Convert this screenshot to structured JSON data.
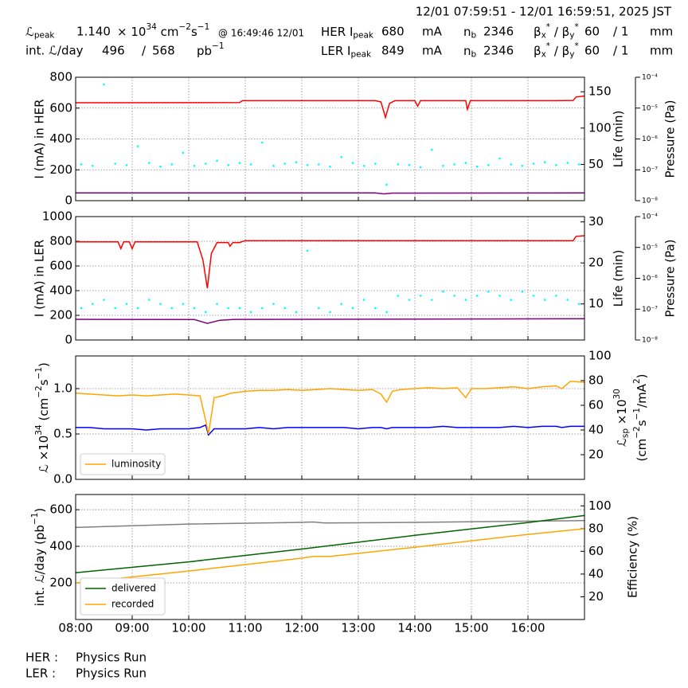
{
  "header": {
    "date_range": "12/01 07:59:51 - 12/01 16:59:51, 2025 JST",
    "lumi": {
      "peak_label": [
        "ℒ",
        {
          "sub": "peak"
        }
      ],
      "peak_value": "1.140",
      "peak_unit": [
        "× 10",
        {
          "sup": "34"
        },
        " cm",
        {
          "sup": "−2"
        },
        "s",
        {
          "sup": "−1"
        }
      ],
      "peak_time": "@ 16:49:46 12/01",
      "int_label": "int. ℒ/day",
      "int_recorded": "496",
      "int_sep": "/",
      "int_delivered": "568",
      "int_unit": [
        "pb",
        {
          "sup": "−1"
        }
      ]
    },
    "rings": [
      {
        "label": [
          "HER I",
          {
            "sub": "peak"
          }
        ],
        "current": "680",
        "current_unit": "mA",
        "nb_label": [
          "n",
          {
            "sub": "b"
          }
        ],
        "nb": "2346",
        "beta_label": [
          "β",
          {
            "sub": "x"
          },
          {
            "sup": "*"
          },
          " / β",
          {
            "sub": "y"
          },
          {
            "sup": "*"
          }
        ],
        "beta_x": "60",
        "beta_y": "/ 1",
        "beta_unit": "mm"
      },
      {
        "label": [
          "LER I",
          {
            "sub": "peak"
          }
        ],
        "current": "849",
        "current_unit": "mA",
        "nb_label": [
          "n",
          {
            "sub": "b"
          }
        ],
        "nb": "2346",
        "beta_label": [
          "β",
          {
            "sub": "x"
          },
          {
            "sup": "*"
          },
          " / β",
          {
            "sub": "y"
          },
          {
            "sup": "*"
          }
        ],
        "beta_x": "60",
        "beta_y": "/ 1",
        "beta_unit": "mm"
      }
    ]
  },
  "footer": [
    {
      "ring": "HER :",
      "mode": "Physics Run"
    },
    {
      "ring": "LER :",
      "mode": "Physics Run"
    }
  ],
  "chart_data": [
    {
      "type": "line",
      "grid": true,
      "ylabel": "I (mA) in HER",
      "y2label": "Life (min)",
      "y3label": "Pressure (Pa)",
      "ylim": [
        0,
        800
      ],
      "yticks": [
        0,
        200,
        400,
        600,
        800
      ],
      "y2lim": [
        0,
        170
      ],
      "y2ticks": [
        50,
        100,
        150
      ],
      "y3log": true,
      "y3lim": [
        1e-08,
        0.0001
      ],
      "y3ticks": [
        {
          "value": 1e-08,
          "label": "10⁻⁸"
        },
        {
          "value": 1e-07,
          "label": "10⁻⁷"
        },
        {
          "value": 1e-06,
          "label": "10⁻⁶"
        },
        {
          "value": 1e-05,
          "label": "10⁻⁵"
        },
        {
          "value": 0.0001,
          "label": "10⁻⁴"
        }
      ],
      "series": [
        {
          "type": "scatter",
          "axis": "y2",
          "color": "#00ffff",
          "x": [
            8.1,
            8.3,
            8.5,
            8.7,
            8.9,
            9.1,
            9.3,
            9.5,
            9.7,
            9.9,
            10.1,
            10.3,
            10.5,
            10.7,
            10.9,
            11.1,
            11.3,
            11.5,
            11.7,
            11.9,
            12.1,
            12.3,
            12.5,
            12.7,
            12.9,
            13.1,
            13.3,
            13.5,
            13.7,
            13.9,
            14.1,
            14.3,
            14.5,
            14.7,
            14.9,
            15.1,
            15.3,
            15.5,
            15.7,
            15.9,
            16.1,
            16.3,
            16.5,
            16.7,
            16.9
          ],
          "values": [
            50,
            48,
            160,
            51,
            49,
            75,
            52,
            47,
            50,
            66,
            48,
            51,
            55,
            49,
            52,
            50,
            80,
            48,
            51,
            53,
            49,
            50,
            47,
            60,
            52,
            48,
            51,
            22,
            50,
            49,
            46,
            70,
            48,
            50,
            52,
            47,
            49,
            58,
            50,
            48,
            51,
            53,
            49,
            52,
            50
          ]
        },
        {
          "color": "#ff0000",
          "x": [
            8,
            10.9,
            10.95,
            12,
            13.3,
            13.4,
            13.48,
            13.55,
            13.65,
            14,
            14.05,
            14.1,
            14.9,
            14.93,
            14.98,
            16.5,
            16.8,
            16.85,
            17
          ],
          "values": [
            635,
            636,
            648,
            648,
            648,
            640,
            540,
            630,
            648,
            648,
            612,
            648,
            648,
            592,
            648,
            648,
            650,
            672,
            678
          ]
        },
        {
          "color": "#800080",
          "x": [
            8,
            13.3,
            13.45,
            13.6,
            17
          ],
          "values": [
            50,
            50,
            44,
            49,
            50
          ]
        }
      ]
    },
    {
      "type": "line",
      "grid": true,
      "ylabel": "I (mA) in LER",
      "y2label": "Life (min)",
      "y3label": "Pressure (Pa)",
      "ylim": [
        0,
        1000
      ],
      "yticks": [
        0,
        200,
        400,
        600,
        800,
        1000
      ],
      "y2lim": [
        1.2,
        31.3
      ],
      "y2ticks": [
        10,
        20,
        30
      ],
      "y3log": true,
      "y3lim": [
        1e-08,
        0.0001
      ],
      "y3ticks": [
        {
          "value": 1e-08,
          "label": "10⁻⁸"
        },
        {
          "value": 1e-07,
          "label": "10⁻⁷"
        },
        {
          "value": 1e-06,
          "label": "10⁻⁶"
        },
        {
          "value": 1e-05,
          "label": "10⁻⁵"
        },
        {
          "value": 0.0001,
          "label": "10⁻⁴"
        }
      ],
      "series": [
        {
          "type": "scatter",
          "axis": "y2",
          "color": "#00ffff",
          "x": [
            8.1,
            8.3,
            8.5,
            8.7,
            8.9,
            9.1,
            9.3,
            9.5,
            9.7,
            9.9,
            10.1,
            10.3,
            10.5,
            10.7,
            10.9,
            11.1,
            11.3,
            11.5,
            11.7,
            11.9,
            12.1,
            12.3,
            12.5,
            12.7,
            12.9,
            13.1,
            13.3,
            13.5,
            13.7,
            13.9,
            14.1,
            14.3,
            14.5,
            14.7,
            14.9,
            15.1,
            15.3,
            15.5,
            15.7,
            15.9,
            16.1,
            16.3,
            16.5,
            16.7,
            16.9
          ],
          "values": [
            9,
            10,
            11,
            9,
            10,
            9,
            11,
            10,
            9,
            10,
            9,
            8,
            10,
            9,
            9,
            8,
            9,
            10,
            9,
            8,
            23,
            9,
            8,
            10,
            9,
            11,
            9,
            8,
            12,
            11,
            12,
            11,
            13,
            12,
            11,
            12,
            13,
            12,
            11,
            13,
            12,
            11,
            12,
            11,
            10
          ]
        },
        {
          "color": "#ff0000",
          "x": [
            8,
            8.75,
            8.8,
            8.85,
            8.95,
            9.0,
            9.05,
            10.15,
            10.25,
            10.33,
            10.4,
            10.5,
            10.7,
            10.73,
            10.78,
            10.9,
            11,
            16.5,
            16.8,
            16.85,
            17
          ],
          "values": [
            795,
            795,
            740,
            795,
            795,
            740,
            795,
            795,
            650,
            420,
            700,
            790,
            790,
            760,
            790,
            790,
            805,
            805,
            805,
            840,
            845
          ]
        },
        {
          "color": "#800080",
          "x": [
            8,
            10.1,
            10.33,
            10.55,
            10.8,
            17
          ],
          "values": [
            168,
            166,
            135,
            160,
            167,
            172
          ]
        }
      ]
    },
    {
      "type": "line",
      "grid": true,
      "legend": "lower left",
      "ylabel": [
        "ℒ ×10",
        {
          "sup": "34"
        },
        " (cm",
        {
          "sup": "−2"
        },
        "s",
        {
          "sup": "−1"
        },
        ")"
      ],
      "y2label": [
        "ℒ",
        {
          "sub": "sp"
        },
        " ×10",
        {
          "sup": "30"
        }
      ],
      "y2label_line2": [
        "(cm",
        {
          "sup": "−2"
        },
        "s",
        {
          "sup": "−1"
        },
        "/mA",
        {
          "sup": "2"
        },
        ")"
      ],
      "ylim": [
        0,
        1.36
      ],
      "yticks": [
        {
          "value": 0,
          "label": "0.0"
        },
        0.5,
        {
          "value": 1,
          "label": "1.0"
        }
      ],
      "y2lim": [
        0,
        100
      ],
      "y2ticks": [
        20,
        40,
        60,
        80,
        100
      ],
      "series": [
        {
          "axis": "y2",
          "color": "#0000ff",
          "x": [
            8,
            8.25,
            8.5,
            8.75,
            9,
            9.25,
            9.5,
            9.75,
            10,
            10.2,
            10.3,
            10.35,
            10.45,
            10.6,
            10.75,
            11,
            11.25,
            11.5,
            11.75,
            12,
            12.25,
            12.5,
            12.75,
            13,
            13.25,
            13.4,
            13.5,
            13.6,
            13.75,
            14,
            14.25,
            14.5,
            14.75,
            14.9,
            15,
            15.25,
            15.5,
            15.75,
            16,
            16.25,
            16.5,
            16.6,
            16.75,
            17
          ],
          "values": [
            42,
            42,
            41,
            41,
            41,
            40,
            41,
            41,
            41,
            42,
            44,
            36,
            41,
            41,
            41,
            41,
            42,
            41,
            42,
            42,
            42,
            42,
            42,
            41,
            42,
            42,
            41,
            42,
            42,
            42,
            42,
            43,
            42,
            42,
            42,
            42,
            42,
            43,
            42,
            43,
            43,
            42,
            43,
            43
          ]
        },
        {
          "name": "luminosity",
          "color": "#ffa500",
          "x": [
            8,
            8.25,
            8.5,
            8.75,
            9,
            9.25,
            9.5,
            9.75,
            10,
            10.2,
            10.3,
            10.35,
            10.45,
            10.6,
            10.75,
            11,
            11.25,
            11.5,
            11.75,
            12,
            12.25,
            12.5,
            12.75,
            13,
            13.25,
            13.4,
            13.5,
            13.6,
            13.75,
            14,
            14.25,
            14.5,
            14.75,
            14.9,
            15,
            15.25,
            15.5,
            15.75,
            16,
            16.25,
            16.5,
            16.6,
            16.75,
            17
          ],
          "values": [
            0.95,
            0.94,
            0.93,
            0.92,
            0.93,
            0.92,
            0.93,
            0.94,
            0.93,
            0.92,
            0.65,
            0.5,
            0.9,
            0.92,
            0.95,
            0.97,
            0.98,
            0.98,
            0.99,
            0.98,
            0.99,
            1.0,
            0.99,
            0.98,
            0.99,
            0.94,
            0.85,
            0.97,
            0.99,
            1.0,
            1.01,
            1.0,
            1.01,
            0.9,
            1.0,
            1.0,
            1.01,
            1.02,
            1.0,
            1.02,
            1.03,
            1.0,
            1.08,
            1.07
          ]
        }
      ]
    },
    {
      "type": "line",
      "grid": true,
      "legend": "lower left",
      "ylabel": [
        "int. ℒ/day (pb",
        {
          "sup": "−1"
        },
        ")"
      ],
      "y2label": "Efficiency (%)",
      "xlim": [
        8,
        17
      ],
      "xticks": [
        {
          "value": 8,
          "label": "08:00"
        },
        {
          "value": 9,
          "label": "09:00"
        },
        {
          "value": 10,
          "label": "10:00"
        },
        {
          "value": 11,
          "label": "11:00"
        },
        {
          "value": 12,
          "label": "12:00"
        },
        {
          "value": 13,
          "label": "13:00"
        },
        {
          "value": 14,
          "label": "14:00"
        },
        {
          "value": 15,
          "label": "15:00"
        },
        {
          "value": 16,
          "label": "16:00"
        }
      ],
      "ylim": [
        0,
        683
      ],
      "yticks": [
        200,
        400,
        600
      ],
      "y2lim": [
        0,
        110
      ],
      "y2ticks": [
        20,
        40,
        60,
        80,
        100
      ],
      "series": [
        {
          "axis": "y2",
          "color": "#808080",
          "x": [
            8,
            10,
            12,
            12.2,
            12.4,
            14,
            16,
            17
          ],
          "values": [
            81,
            84,
            85.5,
            85.8,
            85,
            85.5,
            86.5,
            87
          ]
        },
        {
          "name": "delivered",
          "color": "#006400",
          "x": [
            8,
            10,
            12,
            14,
            16,
            17
          ],
          "values": [
            256,
            315,
            385,
            460,
            530,
            568
          ]
        },
        {
          "name": "recorded",
          "color": "#ffa500",
          "x": [
            8,
            10,
            12,
            12.2,
            12.5,
            14,
            16,
            17
          ],
          "values": [
            200,
            265,
            335,
            345,
            345,
            395,
            465,
            496
          ]
        }
      ]
    }
  ]
}
